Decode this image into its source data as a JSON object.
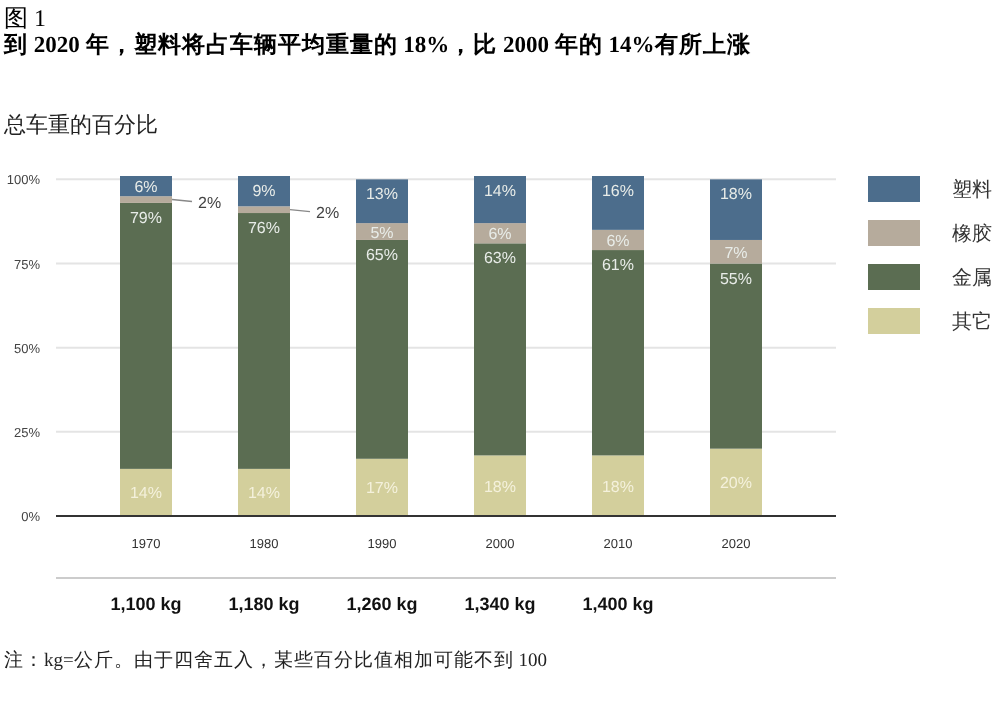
{
  "chart_data": {
    "type": "bar",
    "stacked": true,
    "title": "图 1",
    "subtitle": "到 2020 年，塑料将占车辆平均重量的 18%，比 2000 年的 14%有所上涨",
    "ylabel": "总车重的百分比",
    "categories": [
      "1970",
      "1980",
      "1990",
      "2000",
      "2010",
      "2020"
    ],
    "series": [
      {
        "name": "其它",
        "color": "#d3cf9c",
        "values": [
          14,
          14,
          17,
          18,
          18,
          20
        ],
        "value_labels": [
          "14%",
          "14%",
          "17%",
          "18%",
          "18%",
          "20%"
        ]
      },
      {
        "name": "金属",
        "color": "#5b6d52",
        "values": [
          79,
          76,
          65,
          63,
          61,
          55
        ],
        "value_labels": [
          "79%",
          "76%",
          "65%",
          "63%",
          "61%",
          "55%"
        ]
      },
      {
        "name": "橡胶",
        "color": "#b6ab9c",
        "values": [
          2,
          2,
          5,
          6,
          6,
          7
        ],
        "value_labels": [
          "2%",
          "2%",
          "5%",
          "6%",
          "6%",
          "7%"
        ]
      },
      {
        "name": "塑料",
        "color": "#4c6d8c",
        "values": [
          6,
          9,
          13,
          14,
          16,
          18
        ],
        "value_labels": [
          "6%",
          "9%",
          "13%",
          "14%",
          "16%",
          "18%"
        ]
      }
    ],
    "ylim": [
      0,
      101
    ],
    "yticks": [
      {
        "value": 0,
        "label": "0%"
      },
      {
        "value": 25,
        "label": "25%"
      },
      {
        "value": 50,
        "label": "50%"
      },
      {
        "value": 75,
        "label": "75%"
      },
      {
        "value": 100,
        "label": "100%"
      }
    ],
    "grid": "y",
    "legend": "right",
    "annotations": [
      "1,100 kg",
      "1,180 kg",
      "1,260 kg",
      "1,340 kg",
      "1,400 kg",
      "注：kg=公斤。由于四舍五入，某些百分比值相加可能不到 100"
    ]
  }
}
